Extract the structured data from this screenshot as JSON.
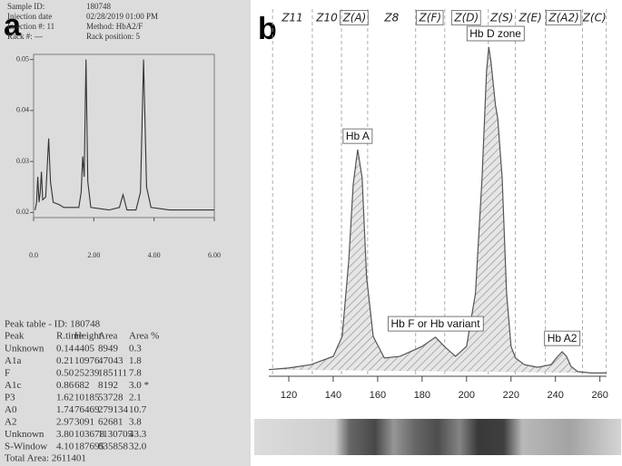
{
  "panel_labels": [
    "a",
    "b"
  ],
  "printout": {
    "header": [
      [
        "Sample ID:",
        "180748"
      ],
      [
        "Injection date",
        "02/28/2019 01:00 PM"
      ],
      [
        "Injection #: 11",
        "Method: HbA2/F"
      ],
      [
        "Rack #: ---",
        "Rack position: 5"
      ]
    ],
    "peak_table": {
      "title": "Peak table - ID: 180748",
      "columns": [
        "Peak",
        "R.time",
        "Height",
        "Area",
        "Area %"
      ],
      "rows": [
        [
          "Unknown",
          "0.14",
          "4405",
          "8949",
          "0.3"
        ],
        [
          "A1a",
          "0.21",
          "10976",
          "47043",
          "1.8"
        ],
        [
          "F",
          "0.50",
          "25239",
          "185111",
          "7.8"
        ],
        [
          "A1c",
          "0.86",
          "682",
          "8192",
          "3.0 *"
        ],
        [
          "P3",
          "1.62",
          "10185",
          "53728",
          "2.1"
        ],
        [
          "A0",
          "1.74",
          "76469",
          "279134",
          "10.7"
        ],
        [
          "A2",
          "2.97",
          "3091",
          "62681",
          "3.8"
        ],
        [
          "Unknown",
          "3.80",
          "103678",
          "1130705",
          "43.3"
        ],
        [
          "S-Window",
          "4.10",
          "187695",
          "835858",
          "32.0"
        ]
      ],
      "total": "Total Area: 2611401"
    }
  },
  "chart_data": [
    {
      "type": "line",
      "x": [
        0.05,
        0.1,
        0.14,
        0.18,
        0.22,
        0.26,
        0.3,
        0.4,
        0.46,
        0.5,
        0.56,
        0.65,
        0.86,
        1.0,
        1.5,
        1.58,
        1.63,
        1.68,
        1.74,
        1.8,
        1.9,
        2.5,
        2.85,
        2.97,
        3.1,
        3.4,
        3.55,
        3.65,
        3.75,
        3.9,
        4.5,
        5.5,
        6.0
      ],
      "series": [
        {
          "color": "#333333",
          "values": [
            0.0205,
            0.022,
            0.027,
            0.022,
            0.024,
            0.028,
            0.0225,
            0.023,
            0.03,
            0.0345,
            0.026,
            0.022,
            0.0215,
            0.021,
            0.021,
            0.024,
            0.031,
            0.027,
            0.05,
            0.026,
            0.021,
            0.0205,
            0.021,
            0.0235,
            0.0205,
            0.0205,
            0.024,
            0.05,
            0.025,
            0.021,
            0.0205,
            0.0205,
            0.0205
          ]
        }
      ],
      "xlim": [
        0,
        6
      ],
      "ylim": [
        0.019,
        0.051
      ],
      "xticks": [
        {
          "value": 0,
          "label": "0.0"
        },
        {
          "value": 2,
          "label": "2.00"
        },
        {
          "value": 4,
          "label": "4.00"
        },
        {
          "value": 6,
          "label": "6.00"
        }
      ],
      "yticks": [
        0.02,
        0.03,
        0.04,
        0.05
      ]
    },
    {
      "type": "area",
      "x": [
        111,
        120,
        130,
        140,
        144,
        147,
        149,
        151,
        153,
        155,
        158,
        163,
        170,
        180,
        186,
        190,
        195,
        200,
        204,
        207,
        209,
        210,
        211,
        213,
        214,
        216,
        218,
        220,
        222,
        226,
        232,
        238,
        241,
        243,
        245,
        247,
        250,
        256,
        263
      ],
      "series": [
        {
          "color": "#555555",
          "values": [
            2,
            2.5,
            3.5,
            6,
            12,
            35,
            58,
            68.5,
            60,
            30,
            12,
            5.5,
            6,
            9,
            11.8,
            9,
            6,
            9,
            25,
            60,
            92,
            99.5,
            95,
            82,
            78,
            60,
            25,
            9,
            5.5,
            3.5,
            2.7,
            3.5,
            6,
            7.4,
            6,
            3,
            1.4,
            1,
            1
          ]
        }
      ],
      "xlim": [
        111,
        263
      ],
      "ylim": [
        0,
        100
      ],
      "xticks": [
        120,
        140,
        160,
        180,
        200,
        220,
        240,
        260
      ],
      "zone_boundaries": [
        112.7,
        130.6,
        143.7,
        155.5,
        177.1,
        190.2,
        209.8,
        222.0,
        235.5,
        252.2,
        262.9
      ],
      "zones": [
        {
          "label": "Z11",
          "boxed": false
        },
        {
          "label": "Z10",
          "boxed": false
        },
        {
          "label": "Z(A)",
          "boxed": true
        },
        {
          "label": "Z8",
          "boxed": false
        },
        {
          "label": "Z(F)",
          "boxed": true
        },
        {
          "label": "Z(D)",
          "boxed": true
        },
        {
          "label": "Z(S)",
          "boxed": false
        },
        {
          "label": "Z(E)",
          "boxed": false
        },
        {
          "label": "Z(A2)",
          "boxed": true
        },
        {
          "label": "Z(C)",
          "boxed": false
        }
      ],
      "annotations": [
        {
          "text": "Hb A",
          "x": 151,
          "y": 68.5
        },
        {
          "text": "Hb F or Hb variant",
          "x": 186,
          "y": 11.8
        },
        {
          "text": "Hb D zone",
          "x": 213,
          "y": 99.5
        },
        {
          "text": "Hb A2",
          "x": 243,
          "y": 7.4
        }
      ]
    }
  ]
}
